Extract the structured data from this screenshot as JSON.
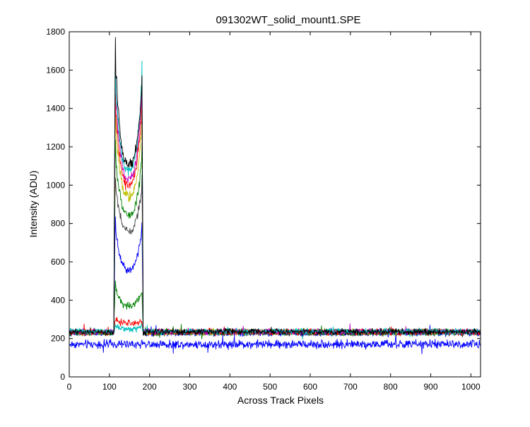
{
  "chart_data": {
    "type": "line",
    "title": "091302WT_solid_mount1.SPE",
    "xlabel": "Across Track Pixels",
    "ylabel": "Intensity (ADU)",
    "xlim": [
      0,
      1024
    ],
    "ylim": [
      0,
      1800
    ],
    "xticks": [
      "0",
      "100",
      "200",
      "300",
      "400",
      "500",
      "600",
      "700",
      "800",
      "900",
      "1000"
    ],
    "yticks": [
      "0",
      "200",
      "400",
      "600",
      "800",
      "1000",
      "1200",
      "1400",
      "1600",
      "1800"
    ],
    "grid": false,
    "legend": false,
    "band": {
      "start": 112,
      "end": 183,
      "dip_center": 148
    },
    "series": [
      {
        "color": "#0000ff",
        "baseline": 170,
        "edge_left": 170,
        "edge_right": 170,
        "dip": 170,
        "noise": 22
      },
      {
        "color": "#00bfbf",
        "baseline": 230,
        "edge_left": 265,
        "edge_right": 265,
        "dip": 250,
        "noise": 15
      },
      {
        "color": "#ff0000",
        "baseline": 235,
        "edge_left": 300,
        "edge_right": 290,
        "dip": 280,
        "noise": 15
      },
      {
        "color": "#008000",
        "baseline": 232,
        "edge_left": 490,
        "edge_right": 460,
        "dip": 370,
        "noise": 15
      },
      {
        "color": "#0000ff",
        "baseline": 228,
        "edge_left": 830,
        "edge_right": 810,
        "dip": 560,
        "noise": 15
      },
      {
        "color": "#404040",
        "baseline": 230,
        "edge_left": 1060,
        "edge_right": 1050,
        "dip": 760,
        "noise": 15
      },
      {
        "color": "#008000",
        "baseline": 232,
        "edge_left": 1230,
        "edge_right": 1210,
        "dip": 840,
        "noise": 15
      },
      {
        "color": "#bfbf00",
        "baseline": 234,
        "edge_left": 1400,
        "edge_right": 1400,
        "dip": 940,
        "noise": 15
      },
      {
        "color": "#ff0000",
        "baseline": 233,
        "edge_left": 1490,
        "edge_right": 1500,
        "dip": 1000,
        "noise": 15
      },
      {
        "color": "#bf00bf",
        "baseline": 236,
        "edge_left": 1600,
        "edge_right": 1590,
        "dip": 1030,
        "noise": 15
      },
      {
        "color": "#00bfbf",
        "baseline": 238,
        "edge_left": 1630,
        "edge_right": 1640,
        "dip": 1080,
        "noise": 15
      },
      {
        "color": "#000000",
        "baseline": 235,
        "edge_left": 1750,
        "edge_right": 1610,
        "dip": 1110,
        "noise": 15
      }
    ]
  }
}
